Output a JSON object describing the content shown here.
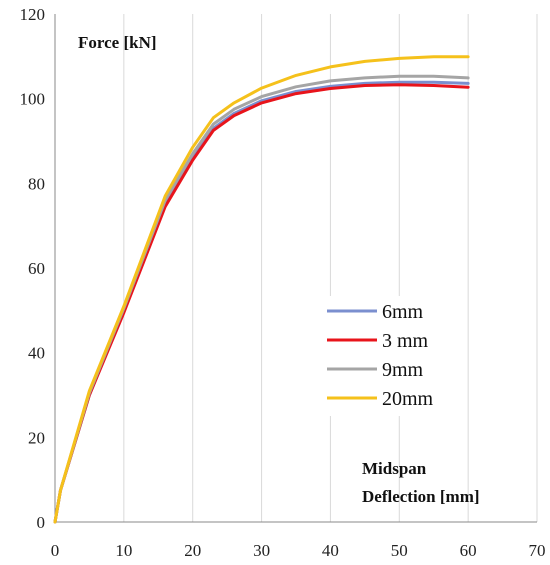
{
  "chart_data": {
    "type": "line",
    "title": "",
    "ylabel": "Force [kN]",
    "xlabel_lines": [
      "Midspan",
      "Deflection [mm]"
    ],
    "xlim": [
      0,
      70
    ],
    "ylim": [
      0,
      120
    ],
    "xticks": [
      0,
      10,
      20,
      30,
      40,
      50,
      60,
      70
    ],
    "yticks": [
      0,
      20,
      40,
      60,
      80,
      100,
      120
    ],
    "grid": "vertical",
    "legend_position": "right-middle",
    "series": [
      {
        "name": "6mm",
        "color": "#7b8fcf",
        "x": [
          0,
          0.8,
          5,
          10,
          16,
          20,
          23,
          26,
          30,
          35,
          40,
          45,
          50,
          55,
          60
        ],
        "y": [
          0,
          7.5,
          30,
          50,
          75,
          86,
          93,
          96.5,
          99.5,
          101.7,
          102.9,
          103.6,
          103.9,
          103.9,
          103.6
        ]
      },
      {
        "name": "3 mm",
        "color": "#e8141b",
        "x": [
          0,
          0.8,
          5,
          10,
          16,
          20,
          23,
          26,
          30,
          35,
          40,
          45,
          50,
          55,
          60
        ],
        "y": [
          0,
          7.5,
          30,
          49.5,
          74.5,
          85.5,
          92.5,
          96,
          99,
          101.2,
          102.4,
          103.1,
          103.3,
          103.1,
          102.7
        ]
      },
      {
        "name": "9mm",
        "color": "#a5a5a5",
        "x": [
          0,
          0.8,
          5,
          10,
          16,
          20,
          23,
          26,
          30,
          35,
          40,
          45,
          50,
          55,
          60
        ],
        "y": [
          0,
          7.5,
          30.5,
          50.5,
          76,
          87,
          94,
          97.5,
          100.5,
          102.8,
          104.2,
          104.9,
          105.3,
          105.3,
          104.9
        ]
      },
      {
        "name": "20mm",
        "color": "#f5c11b",
        "x": [
          0,
          0.8,
          5,
          10,
          16,
          20,
          23,
          26,
          30,
          35,
          40,
          45,
          50,
          55,
          60
        ],
        "y": [
          0,
          7.5,
          31,
          51,
          77,
          88.5,
          95.5,
          99,
          102.5,
          105.5,
          107.5,
          108.8,
          109.5,
          109.9,
          109.9
        ]
      }
    ]
  }
}
